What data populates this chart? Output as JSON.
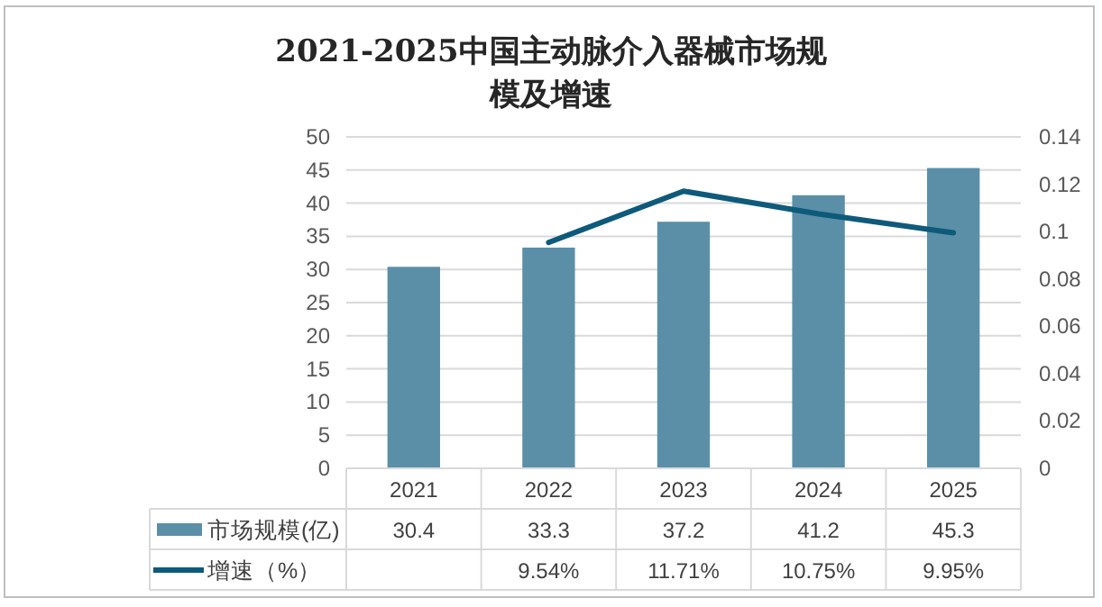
{
  "chart_data": {
    "type": "bar",
    "title": "2021-2025中国主动脉介入器械市场规模及增速",
    "categories": [
      "2021",
      "2022",
      "2023",
      "2024",
      "2025"
    ],
    "series": [
      {
        "name": "市场规模(亿)",
        "color": "#5b8fa8",
        "values": [
          30.4,
          33.3,
          37.2,
          41.2,
          45.3
        ],
        "value_labels": [
          "30.4",
          "33.3",
          "37.2",
          "41.2",
          "45.3"
        ]
      },
      {
        "name": "增速（%）",
        "type": "line",
        "axis": "y2",
        "color": "#0e5a7a",
        "values": [
          null,
          0.0954,
          0.1171,
          0.1075,
          0.0995
        ],
        "value_labels": [
          null,
          "9.54%",
          "11.71%",
          "10.75%",
          "9.95%"
        ]
      }
    ],
    "ylim": [
      0,
      50
    ],
    "yticks": [
      0,
      5,
      10,
      15,
      20,
      25,
      30,
      35,
      40,
      45,
      50
    ],
    "y2lim": [
      0,
      0.14
    ],
    "y2ticks": [
      0,
      0.02,
      0.04,
      0.06,
      0.08,
      0.1,
      0.12,
      0.14
    ],
    "grid": "y",
    "legend": "bottom"
  }
}
